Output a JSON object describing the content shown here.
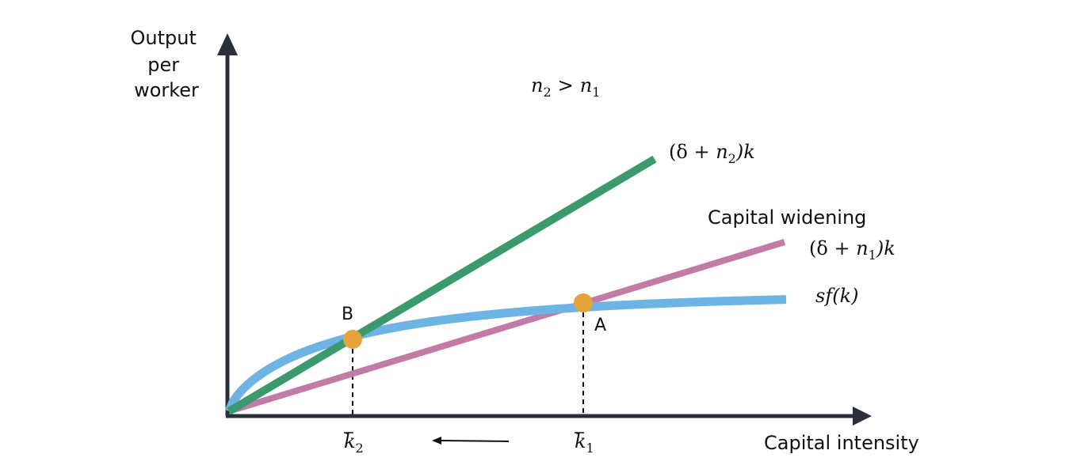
{
  "axes": {
    "ylabel_lines": [
      "Output",
      "per",
      "worker"
    ],
    "xlabel": "Capital intensity"
  },
  "annotations": {
    "condition": {
      "n2": "n",
      "sub2": "2",
      "gt": ">",
      "n1": "n",
      "sub1": "1"
    },
    "capital_widening": "Capital widening"
  },
  "curves": {
    "line_n2": {
      "open": "(δ + ",
      "var": "n",
      "sub": "2",
      "close": ")k",
      "color": "#3a9a6e"
    },
    "line_n1": {
      "open": "(δ + ",
      "var": "n",
      "sub": "1",
      "close": ")k",
      "color": "#c27ba4"
    },
    "sf": {
      "label": "sf(k)",
      "color": "#6db4e4"
    }
  },
  "points": {
    "A": {
      "label": "A",
      "color": "#e2a43b"
    },
    "B": {
      "label": "B",
      "color": "#e2a43b"
    }
  },
  "ticks": {
    "k1": {
      "var": "k",
      "sub": "1"
    },
    "k2": {
      "var": "k",
      "sub": "2"
    }
  },
  "colors": {
    "axis": "#2a303b",
    "dashed": "#111111",
    "arrow": "#111111"
  }
}
